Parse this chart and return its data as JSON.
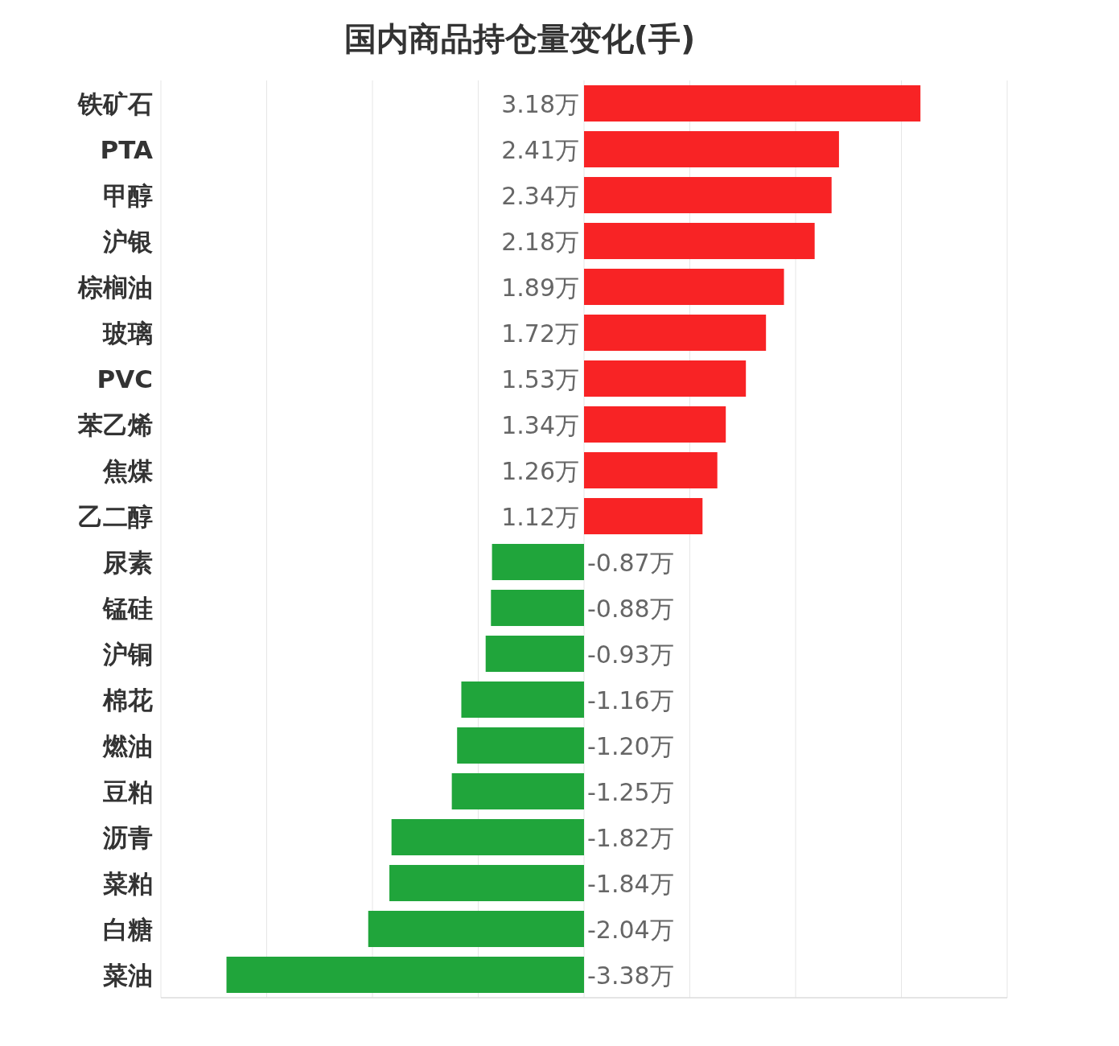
{
  "chart_data": {
    "type": "bar",
    "orientation": "horizontal",
    "title": "国内商品持仓量变化(手)",
    "categories": [
      "铁矿石",
      "PTA",
      "甲醇",
      "沪银",
      "棕榈油",
      "玻璃",
      "PVC",
      "苯乙烯",
      "焦煤",
      "乙二醇",
      "尿素",
      "锰硅",
      "沪铜",
      "棉花",
      "燃油",
      "豆粕",
      "沥青",
      "菜粕",
      "白糖",
      "菜油"
    ],
    "values": [
      3.18,
      2.41,
      2.34,
      2.18,
      1.89,
      1.72,
      1.53,
      1.34,
      1.26,
      1.12,
      -0.87,
      -0.88,
      -0.93,
      -1.16,
      -1.2,
      -1.25,
      -1.82,
      -1.84,
      -2.04,
      -3.38
    ],
    "value_labels": [
      "3.18万",
      "2.41万",
      "2.34万",
      "2.18万",
      "1.89万",
      "1.72万",
      "1.53万",
      "1.34万",
      "1.26万",
      "1.12万",
      "-0.87万",
      "-0.88万",
      "-0.93万",
      "-1.16万",
      "-1.20万",
      "-1.25万",
      "-1.82万",
      "-1.84万",
      "-2.04万",
      "-3.38万"
    ],
    "colors": [
      "#f82325",
      "#f82325",
      "#f82325",
      "#f82325",
      "#f82325",
      "#f82325",
      "#f82325",
      "#f82325",
      "#f82325",
      "#f82325",
      "#20a53b",
      "#20a53b",
      "#20a53b",
      "#20a53b",
      "#20a53b",
      "#20a53b",
      "#20a53b",
      "#20a53b",
      "#20a53b",
      "#20a53b"
    ],
    "xlim": [
      -4,
      4
    ],
    "xticks": [
      {
        "value": -4,
        "label": null
      },
      {
        "value": -3,
        "label": null
      },
      {
        "value": -2,
        "label": null
      },
      {
        "value": -1,
        "label": null
      },
      {
        "value": 0,
        "label": null
      },
      {
        "value": 1,
        "label": null
      },
      {
        "value": 2,
        "label": null
      },
      {
        "value": 3,
        "label": null
      },
      {
        "value": 4,
        "label": null
      }
    ],
    "grid": "x",
    "tick_labels": "y"
  }
}
